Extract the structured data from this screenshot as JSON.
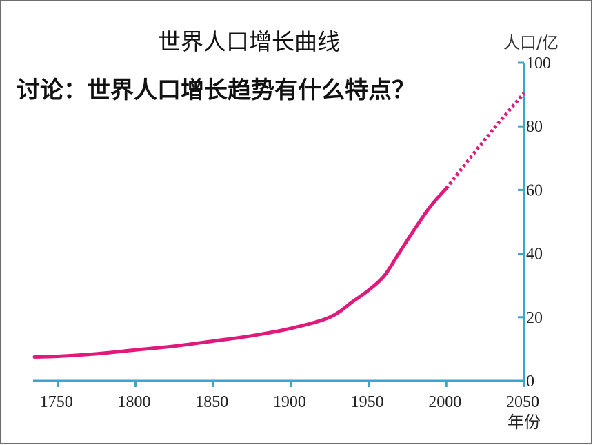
{
  "chart_data": {
    "type": "line",
    "title": "世界人口增长曲线",
    "question": "讨论：世界人口增长趋势有什么特点？",
    "ylabel": "人口/亿",
    "xlabel": "年份",
    "x_ticks": [
      "1750",
      "1800",
      "1850",
      "1900",
      "1950",
      "2000",
      "2050"
    ],
    "y_ticks": [
      "0",
      "20",
      "40",
      "60",
      "80",
      "100"
    ],
    "xlim": [
      1735,
      2050
    ],
    "ylim": [
      0,
      100
    ],
    "grid": false,
    "axis_color": "#3aa6c8",
    "series": [
      {
        "color": "#e0197a",
        "style": "solid",
        "points": [
          [
            1735,
            7.5
          ],
          [
            1750,
            7.7
          ],
          [
            1775,
            8.5
          ],
          [
            1800,
            9.7
          ],
          [
            1825,
            10.9
          ],
          [
            1850,
            12.5
          ],
          [
            1875,
            14.2
          ],
          [
            1900,
            16.5
          ],
          [
            1925,
            20.0
          ],
          [
            1940,
            25.0
          ],
          [
            1950,
            28.5
          ],
          [
            1960,
            33.0
          ],
          [
            1970,
            40.5
          ],
          [
            1980,
            48.0
          ],
          [
            1990,
            55.0
          ],
          [
            2000,
            60.5
          ]
        ]
      },
      {
        "color": "#e0197a",
        "style": "dotted",
        "points": [
          [
            2000,
            60.5
          ],
          [
            2025,
            76.0
          ],
          [
            2050,
            90.5
          ]
        ]
      }
    ]
  }
}
